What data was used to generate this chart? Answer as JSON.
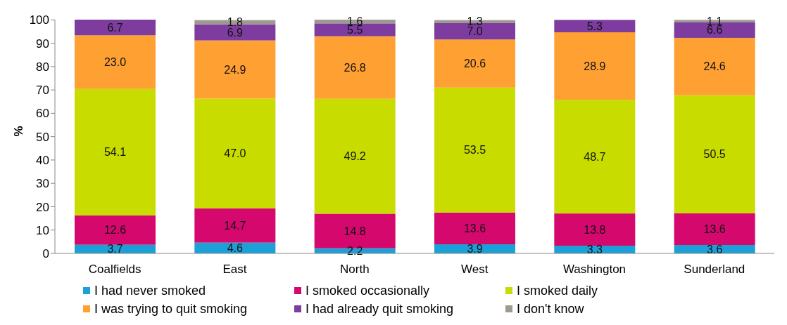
{
  "chart_data": {
    "type": "bar",
    "stacked": true,
    "ylabel": "%",
    "categories": [
      "Coalfields",
      "East",
      "North",
      "West",
      "Washington",
      "Sunderland"
    ],
    "ylim": [
      0,
      100
    ],
    "yticks": [
      0,
      10,
      20,
      30,
      40,
      50,
      60,
      70,
      80,
      90,
      100
    ],
    "grid": false,
    "legend": "bottom",
    "series": [
      {
        "name": "I had never smoked",
        "color": "#1ba1d8",
        "values": [
          3.7,
          4.6,
          2.2,
          3.9,
          3.3,
          3.6
        ],
        "value_labels": [
          "3.7",
          "4.6",
          "2.2",
          "3.9",
          "3.3",
          "3.6"
        ]
      },
      {
        "name": "I smoked occasionally",
        "color": "#d5086e",
        "values": [
          12.6,
          14.7,
          14.8,
          13.6,
          13.8,
          13.6
        ],
        "value_labels": [
          "12.6",
          "14.7",
          "14.8",
          "13.6",
          "13.8",
          "13.6"
        ]
      },
      {
        "name": "I smoked daily",
        "color": "#c8dc00",
        "values": [
          54.1,
          47.0,
          49.2,
          53.5,
          48.7,
          50.5
        ],
        "value_labels": [
          "54.1",
          "47.0",
          "49.2",
          "53.5",
          "48.7",
          "50.5"
        ]
      },
      {
        "name": "I was trying to quit smoking",
        "color": "#ffa033",
        "values": [
          23.0,
          24.9,
          26.8,
          20.6,
          28.9,
          24.6
        ],
        "value_labels": [
          "23.0",
          "24.9",
          "26.8",
          "20.6",
          "28.9",
          "24.6"
        ]
      },
      {
        "name": "I had already quit smoking",
        "color": "#7d3c9e",
        "values": [
          6.7,
          6.9,
          5.5,
          7.0,
          5.3,
          6.6
        ],
        "value_labels": [
          "6.7",
          "6.9",
          "5.5",
          "7.0",
          "5.3",
          "6.6"
        ]
      },
      {
        "name": "I don't know",
        "color": "#9e9a91",
        "values": [
          null,
          1.8,
          1.6,
          1.3,
          null,
          1.1
        ],
        "value_labels": [
          null,
          "1.8",
          "1.6",
          "1.3",
          null,
          "1.1"
        ]
      }
    ]
  }
}
